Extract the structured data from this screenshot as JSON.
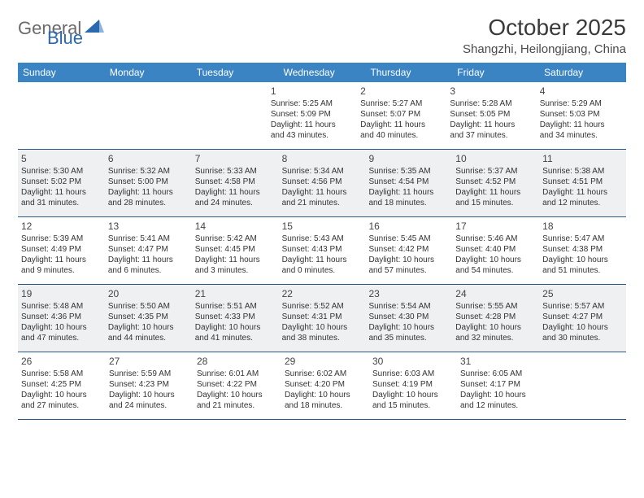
{
  "logo": {
    "part1": "General",
    "part2": "Blue"
  },
  "title": "October 2025",
  "location": "Shangzhi, Heilongjiang, China",
  "colors": {
    "header_bg": "#3b84c4",
    "header_text": "#ffffff",
    "alt_row_bg": "#eef0f2",
    "border": "#2a5a8a",
    "logo_gray": "#6a6a6a",
    "logo_blue": "#2a68b0"
  },
  "weekdays": [
    "Sunday",
    "Monday",
    "Tuesday",
    "Wednesday",
    "Thursday",
    "Friday",
    "Saturday"
  ],
  "weeks": [
    {
      "alt": false,
      "days": [
        null,
        null,
        null,
        {
          "n": "1",
          "sunrise": "5:25 AM",
          "sunset": "5:09 PM",
          "dayh": "11",
          "daym": "43"
        },
        {
          "n": "2",
          "sunrise": "5:27 AM",
          "sunset": "5:07 PM",
          "dayh": "11",
          "daym": "40"
        },
        {
          "n": "3",
          "sunrise": "5:28 AM",
          "sunset": "5:05 PM",
          "dayh": "11",
          "daym": "37"
        },
        {
          "n": "4",
          "sunrise": "5:29 AM",
          "sunset": "5:03 PM",
          "dayh": "11",
          "daym": "34"
        }
      ]
    },
    {
      "alt": true,
      "days": [
        {
          "n": "5",
          "sunrise": "5:30 AM",
          "sunset": "5:02 PM",
          "dayh": "11",
          "daym": "31"
        },
        {
          "n": "6",
          "sunrise": "5:32 AM",
          "sunset": "5:00 PM",
          "dayh": "11",
          "daym": "28"
        },
        {
          "n": "7",
          "sunrise": "5:33 AM",
          "sunset": "4:58 PM",
          "dayh": "11",
          "daym": "24"
        },
        {
          "n": "8",
          "sunrise": "5:34 AM",
          "sunset": "4:56 PM",
          "dayh": "11",
          "daym": "21"
        },
        {
          "n": "9",
          "sunrise": "5:35 AM",
          "sunset": "4:54 PM",
          "dayh": "11",
          "daym": "18"
        },
        {
          "n": "10",
          "sunrise": "5:37 AM",
          "sunset": "4:52 PM",
          "dayh": "11",
          "daym": "15"
        },
        {
          "n": "11",
          "sunrise": "5:38 AM",
          "sunset": "4:51 PM",
          "dayh": "11",
          "daym": "12"
        }
      ]
    },
    {
      "alt": false,
      "days": [
        {
          "n": "12",
          "sunrise": "5:39 AM",
          "sunset": "4:49 PM",
          "dayh": "11",
          "daym": "9"
        },
        {
          "n": "13",
          "sunrise": "5:41 AM",
          "sunset": "4:47 PM",
          "dayh": "11",
          "daym": "6"
        },
        {
          "n": "14",
          "sunrise": "5:42 AM",
          "sunset": "4:45 PM",
          "dayh": "11",
          "daym": "3"
        },
        {
          "n": "15",
          "sunrise": "5:43 AM",
          "sunset": "4:43 PM",
          "dayh": "11",
          "daym": "0"
        },
        {
          "n": "16",
          "sunrise": "5:45 AM",
          "sunset": "4:42 PM",
          "dayh": "10",
          "daym": "57"
        },
        {
          "n": "17",
          "sunrise": "5:46 AM",
          "sunset": "4:40 PM",
          "dayh": "10",
          "daym": "54"
        },
        {
          "n": "18",
          "sunrise": "5:47 AM",
          "sunset": "4:38 PM",
          "dayh": "10",
          "daym": "51"
        }
      ]
    },
    {
      "alt": true,
      "days": [
        {
          "n": "19",
          "sunrise": "5:48 AM",
          "sunset": "4:36 PM",
          "dayh": "10",
          "daym": "47"
        },
        {
          "n": "20",
          "sunrise": "5:50 AM",
          "sunset": "4:35 PM",
          "dayh": "10",
          "daym": "44"
        },
        {
          "n": "21",
          "sunrise": "5:51 AM",
          "sunset": "4:33 PM",
          "dayh": "10",
          "daym": "41"
        },
        {
          "n": "22",
          "sunrise": "5:52 AM",
          "sunset": "4:31 PM",
          "dayh": "10",
          "daym": "38"
        },
        {
          "n": "23",
          "sunrise": "5:54 AM",
          "sunset": "4:30 PM",
          "dayh": "10",
          "daym": "35"
        },
        {
          "n": "24",
          "sunrise": "5:55 AM",
          "sunset": "4:28 PM",
          "dayh": "10",
          "daym": "32"
        },
        {
          "n": "25",
          "sunrise": "5:57 AM",
          "sunset": "4:27 PM",
          "dayh": "10",
          "daym": "30"
        }
      ]
    },
    {
      "alt": false,
      "days": [
        {
          "n": "26",
          "sunrise": "5:58 AM",
          "sunset": "4:25 PM",
          "dayh": "10",
          "daym": "27"
        },
        {
          "n": "27",
          "sunrise": "5:59 AM",
          "sunset": "4:23 PM",
          "dayh": "10",
          "daym": "24"
        },
        {
          "n": "28",
          "sunrise": "6:01 AM",
          "sunset": "4:22 PM",
          "dayh": "10",
          "daym": "21"
        },
        {
          "n": "29",
          "sunrise": "6:02 AM",
          "sunset": "4:20 PM",
          "dayh": "10",
          "daym": "18"
        },
        {
          "n": "30",
          "sunrise": "6:03 AM",
          "sunset": "4:19 PM",
          "dayh": "10",
          "daym": "15"
        },
        {
          "n": "31",
          "sunrise": "6:05 AM",
          "sunset": "4:17 PM",
          "dayh": "10",
          "daym": "12"
        },
        null
      ]
    }
  ]
}
